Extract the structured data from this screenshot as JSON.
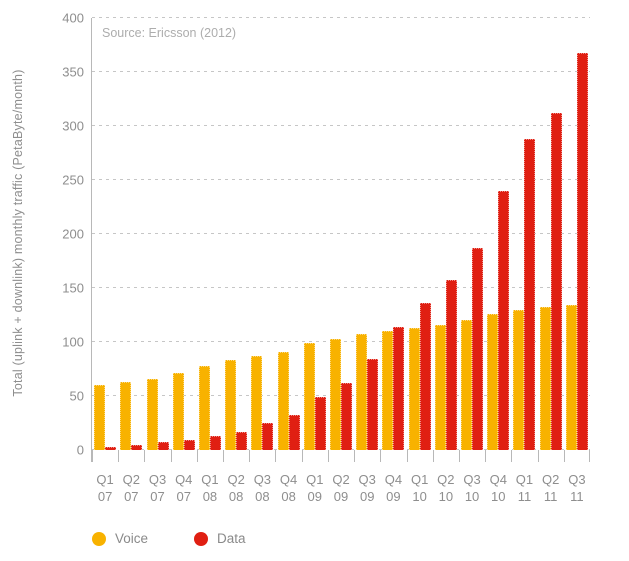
{
  "chart_data": {
    "type": "bar",
    "title": "",
    "source_note": "Source: Ericsson (2012)",
    "ylabel": "Total (uplink + downlink) monthly traffic (PetaByte/month)",
    "xlabel": "",
    "ylim": [
      0,
      400
    ],
    "ytick_step": 50,
    "grid": "horizontal-dashed",
    "legend_position": "bottom-left",
    "categories": [
      "Q1 07",
      "Q2 07",
      "Q3 07",
      "Q4 07",
      "Q1 08",
      "Q2 08",
      "Q3 08",
      "Q4 08",
      "Q1 09",
      "Q2 09",
      "Q3 09",
      "Q4 09",
      "Q1 10",
      "Q2 10",
      "Q3 10",
      "Q4 10",
      "Q1 11",
      "Q2 11",
      "Q3 11"
    ],
    "series": [
      {
        "name": "Voice",
        "color": "#F8B200",
        "values": [
          60,
          63,
          66,
          71,
          78,
          83,
          87,
          91,
          99,
          103,
          107,
          110,
          113,
          116,
          120,
          126,
          130,
          132,
          134
        ]
      },
      {
        "name": "Data",
        "color": "#E01F12",
        "values": [
          3,
          5,
          7,
          9,
          13,
          17,
          25,
          32,
          49,
          62,
          84,
          114,
          136,
          157,
          187,
          240,
          288,
          312,
          368
        ]
      }
    ],
    "colors": {
      "gridline": "#c6c6c6",
      "axis": "#b8b8b8",
      "tick_text": "#8e8e8e",
      "source_text": "#adadad"
    }
  }
}
